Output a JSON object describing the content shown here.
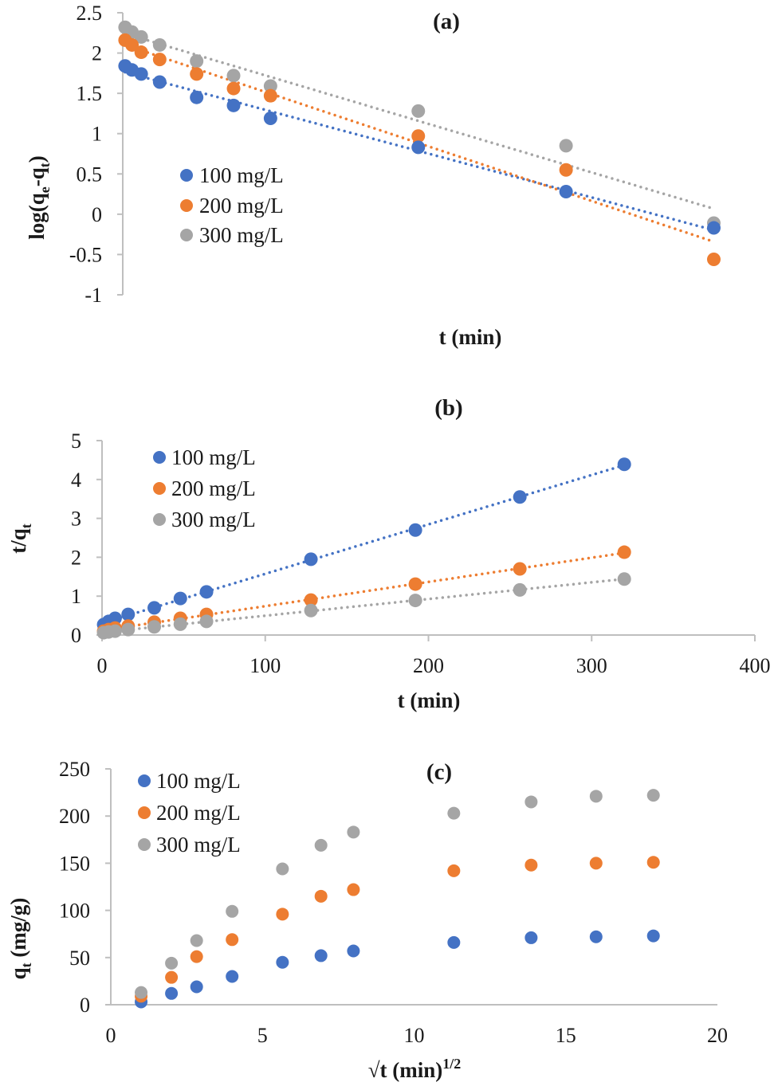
{
  "chart_data": [
    {
      "id": "a",
      "type": "scatter",
      "title": "(a)",
      "xlabel": "t (min)",
      "ylabel": "log(q_e-q_t)",
      "ylabel_parts": {
        "main": "log(q",
        "sub1": "e",
        "mid": "-q",
        "sub2": "t",
        "end": ")"
      },
      "ylim": [
        -1,
        2.5
      ],
      "yticks": [
        "-1",
        "-0.5",
        "0",
        "0.5",
        "1",
        "1.5",
        "2",
        "2.5"
      ],
      "ytick_values": [
        -1,
        -0.5,
        0,
        0.5,
        1,
        1.5,
        2,
        2.5
      ],
      "xlim": [
        0,
        280
      ],
      "x_ticks_shown": false,
      "trendline": "linear-dotted",
      "legend": "middle-left",
      "x": [
        1,
        4,
        8,
        16,
        32,
        48,
        64,
        128,
        192,
        256
      ],
      "series": [
        {
          "name": "100 mg/L",
          "color": "#4472c4",
          "values": [
            1.84,
            1.79,
            1.74,
            1.64,
            1.45,
            1.35,
            1.19,
            0.83,
            0.28,
            -0.17
          ]
        },
        {
          "name": "200 mg/L",
          "color": "#ed7d31",
          "values": [
            2.16,
            2.1,
            2.01,
            1.92,
            1.74,
            1.56,
            1.47,
            0.97,
            0.55,
            -0.56
          ]
        },
        {
          "name": "300 mg/L",
          "color": "#a5a5a5",
          "values": [
            2.32,
            2.26,
            2.2,
            2.1,
            1.9,
            1.72,
            1.59,
            1.28,
            0.85,
            -0.11
          ]
        }
      ]
    },
    {
      "id": "b",
      "type": "scatter",
      "title": "(b)",
      "xlabel": "t (min)",
      "ylabel": "t/q_t",
      "ylabel_parts": {
        "main": "t/q",
        "sub": "t"
      },
      "xlim": [
        0,
        400
      ],
      "ylim": [
        0,
        5
      ],
      "xticks": [
        "0",
        "100",
        "200",
        "300",
        "400"
      ],
      "xtick_values": [
        0,
        100,
        200,
        300,
        400
      ],
      "yticks": [
        "0",
        "1",
        "2",
        "3",
        "4",
        "5"
      ],
      "ytick_values": [
        0,
        1,
        2,
        3,
        4,
        5
      ],
      "trendline": "linear-dotted",
      "legend": "top-left",
      "x": [
        1,
        4,
        8,
        16,
        32,
        48,
        64,
        128,
        192,
        256,
        320
      ],
      "series": [
        {
          "name": "100 mg/L",
          "color": "#4472c4",
          "values": [
            0.27,
            0.35,
            0.43,
            0.53,
            0.7,
            0.94,
            1.11,
            1.95,
            2.7,
            3.55,
            4.39
          ]
        },
        {
          "name": "200 mg/L",
          "color": "#ed7d31",
          "values": [
            0.1,
            0.14,
            0.18,
            0.23,
            0.33,
            0.43,
            0.53,
            0.9,
            1.31,
            1.7,
            2.13
          ]
        },
        {
          "name": "300 mg/L",
          "color": "#a5a5a5",
          "values": [
            0.06,
            0.08,
            0.1,
            0.14,
            0.21,
            0.28,
            0.35,
            0.63,
            0.89,
            1.16,
            1.44
          ]
        }
      ]
    },
    {
      "id": "c",
      "type": "scatter",
      "title": "(c)",
      "xlabel": "√t (min)^1/2",
      "xlabel_parts": {
        "main": "√t (min)",
        "sup": "1/2"
      },
      "ylabel": "q_t (mg/g)",
      "ylabel_parts": {
        "main": "q",
        "sub": "t",
        "end": " (mg/g)"
      },
      "xlim": [
        0,
        20
      ],
      "ylim": [
        0,
        250
      ],
      "xticks": [
        "0",
        "5",
        "10",
        "15",
        "20"
      ],
      "xtick_values": [
        0,
        5,
        10,
        15,
        20
      ],
      "yticks": [
        "0",
        "50",
        "100",
        "150",
        "200",
        "250"
      ],
      "ytick_values": [
        0,
        50,
        100,
        150,
        200,
        250
      ],
      "trendline": "none",
      "legend": "top-left",
      "x": [
        1,
        2,
        2.83,
        4,
        5.66,
        6.93,
        8,
        11.31,
        13.86,
        16,
        17.89
      ],
      "series": [
        {
          "name": "100 mg/L",
          "color": "#4472c4",
          "values": [
            3,
            12,
            19,
            30,
            45,
            52,
            57,
            66,
            71,
            72,
            73
          ]
        },
        {
          "name": "200 mg/L",
          "color": "#ed7d31",
          "values": [
            9,
            29,
            51,
            69,
            96,
            115,
            122,
            142,
            148,
            150,
            151
          ]
        },
        {
          "name": "300 mg/L",
          "color": "#a5a5a5",
          "values": [
            13,
            44,
            68,
            99,
            144,
            169,
            183,
            203,
            215,
            221,
            222
          ]
        }
      ]
    }
  ]
}
